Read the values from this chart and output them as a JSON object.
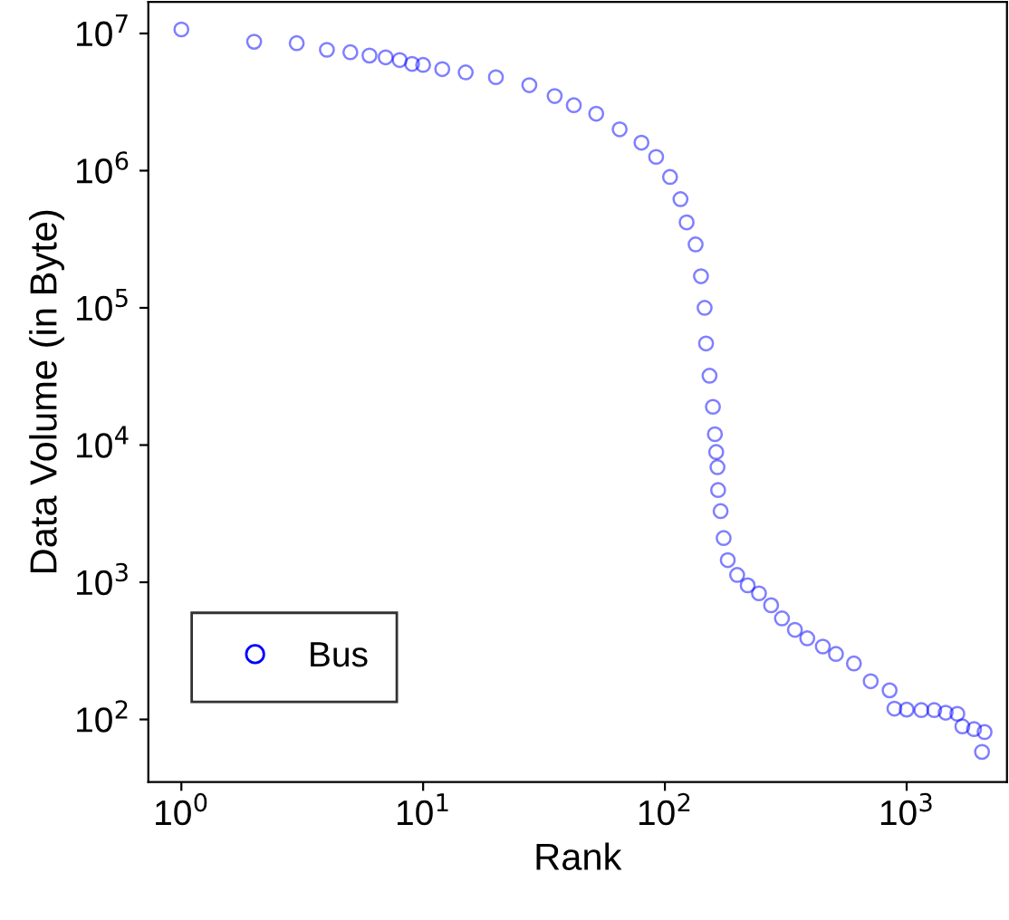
{
  "chart_data": {
    "type": "scatter",
    "xlabel": "Rank",
    "ylabel": "Data Volume (in Byte)",
    "log": "xy",
    "grid": false,
    "legend": "bottom left",
    "marker": "circle",
    "xlim": [
      0.73,
      2600
    ],
    "ylim": [
      35,
      17000000
    ],
    "xticks": [
      {
        "value": 1,
        "label": "10$^{0}$"
      },
      {
        "value": 10,
        "label": "10$^{1}$"
      },
      {
        "value": 100,
        "label": "10$^{2}$"
      },
      {
        "value": 1000,
        "label": "10$^{3}$"
      }
    ],
    "yticks": [
      {
        "value": 100,
        "label": "10$^{2}$"
      },
      {
        "value": 1000,
        "label": "10$^{3}$"
      },
      {
        "value": 10000,
        "label": "10$^{4}$"
      },
      {
        "value": 100000,
        "label": "10$^{5}$"
      },
      {
        "value": 1000000,
        "label": "10$^{6}$"
      },
      {
        "value": 10000000,
        "label": "10$^{7}$"
      }
    ],
    "series": [
      {
        "name": "Bus",
        "color": "#0000ff",
        "x": [
          1,
          2,
          3,
          4,
          5,
          6,
          7,
          8,
          9,
          10,
          12,
          15,
          20,
          27.5,
          35,
          42,
          52,
          65,
          80,
          92,
          105,
          116,
          123,
          134,
          141,
          146,
          148,
          153,
          158,
          161,
          163,
          165,
          166,
          170,
          175,
          182,
          199,
          220,
          245,
          275,
          305,
          345,
          388,
          450,
          510,
          605,
          710,
          850,
          890,
          1000,
          1150,
          1300,
          1450,
          1620,
          1700,
          1900,
          2100,
          2050
        ],
        "values": [
          10700000,
          8700000,
          8500000,
          7600000,
          7300000,
          6900000,
          6700000,
          6400000,
          6000000,
          5900000,
          5500000,
          5200000,
          4800000,
          4200000,
          3500000,
          3000000,
          2600000,
          2000000,
          1600000,
          1260000,
          900000,
          620000,
          420000,
          290000,
          170000,
          100000,
          55000,
          32000,
          19000,
          12000,
          8900,
          6900,
          4700,
          3300,
          2100,
          1450,
          1130,
          950,
          830,
          680,
          545,
          450,
          390,
          340,
          300,
          256,
          190,
          163,
          120,
          118,
          117,
          117,
          112,
          110,
          89,
          85,
          81,
          58
        ]
      }
    ]
  }
}
